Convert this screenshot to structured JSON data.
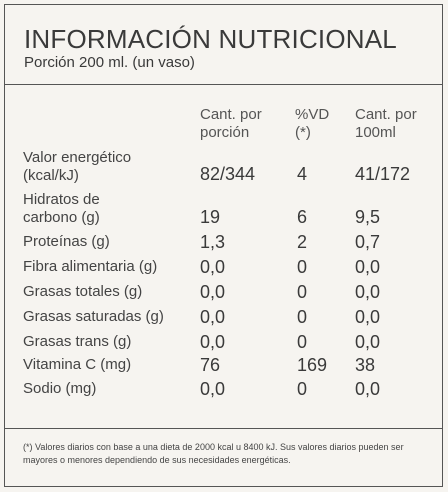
{
  "title": "INFORMACIÓN NUTRICIONAL",
  "subtitle": "Porción 200 ml. (un vaso)",
  "columns": {
    "per_portion": "Cant. por\nporción",
    "vd": "%VD\n(*)",
    "per_100": "Cant. por\n100ml"
  },
  "rows": [
    {
      "label": "Valor energético\n(kcal/kJ)",
      "portion": "82/344",
      "vd": "4",
      "per100": "41/172"
    },
    {
      "label": "Hidratos de\ncarbono (g)",
      "portion": "19",
      "vd": "6",
      "per100": "9,5"
    },
    {
      "label": "Proteínas (g)",
      "portion": "1,3",
      "vd": "2",
      "per100": "0,7"
    },
    {
      "label": "Fibra alimentaria (g)",
      "portion": "0,0",
      "vd": "0",
      "per100": "0,0"
    },
    {
      "label": "Grasas totales (g)",
      "portion": "0,0",
      "vd": "0",
      "per100": "0,0"
    },
    {
      "label": "Grasas saturadas (g)",
      "portion": "0,0",
      "vd": "0",
      "per100": "0,0"
    },
    {
      "label": "Grasas trans (g)",
      "portion": "0,0",
      "vd": "0",
      "per100": "0,0"
    },
    {
      "label": "Vitamina C (mg)",
      "portion": "76",
      "vd": "169",
      "per100": "38"
    },
    {
      "label": "Sodio (mg)",
      "portion": "0,0",
      "vd": "0",
      "per100": "0,0"
    }
  ],
  "footnote": "(*) Valores diarios con base a una dieta de 2000 kcal u 8400 kJ. Sus valores diarios pueden ser mayores o menores dependiendo de sus necesidades energéticas."
}
